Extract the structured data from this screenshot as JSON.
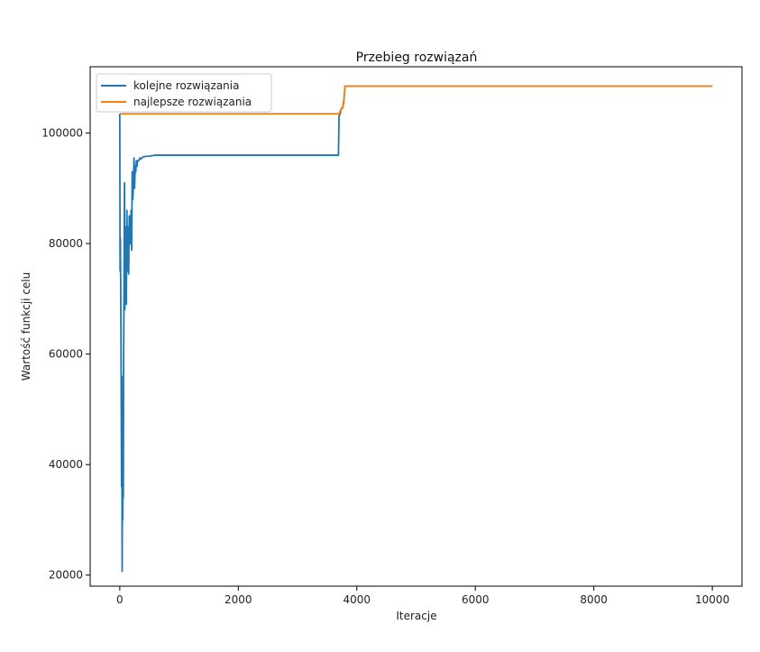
{
  "chart_data": {
    "type": "line",
    "title": "Przebieg rozwiązań",
    "xlabel": "Iteracje",
    "ylabel": "Wartość funkcji celu",
    "xlim": [
      -500,
      10500
    ],
    "ylim": [
      18000,
      112000
    ],
    "xticks": [
      0,
      2000,
      4000,
      6000,
      8000,
      10000
    ],
    "yticks": [
      20000,
      40000,
      60000,
      80000,
      100000
    ],
    "grid": false,
    "legend_position": "top-left",
    "colors": {
      "series_1": "#1f77b4",
      "series_2": "#ff7f0e"
    },
    "series": [
      {
        "name": "kolejne rozwiązania",
        "x": [
          0,
          5,
          10,
          15,
          20,
          25,
          30,
          35,
          40,
          45,
          50,
          55,
          60,
          65,
          70,
          75,
          80,
          85,
          90,
          95,
          100,
          110,
          120,
          130,
          140,
          150,
          160,
          170,
          180,
          190,
          200,
          210,
          220,
          230,
          240,
          250,
          260,
          270,
          280,
          290,
          300,
          320,
          340,
          360,
          380,
          400,
          450,
          500,
          550,
          600,
          700,
          1000,
          2000,
          3000,
          3690,
          3700,
          3720,
          3740,
          3760,
          3780,
          3800,
          3820,
          4000,
          6000,
          8000,
          10000
        ],
        "y": [
          103500,
          75000,
          81000,
          73000,
          63000,
          50000,
          36000,
          56000,
          20700,
          42000,
          30000,
          52000,
          34000,
          60000,
          67500,
          80000,
          91000,
          68000,
          77000,
          83000,
          79000,
          69000,
          86000,
          75000,
          83000,
          74500,
          85000,
          80000,
          80000,
          86000,
          78800,
          93000,
          88000,
          91000,
          95500,
          90000,
          94000,
          93000,
          95000,
          94000,
          95000,
          95000,
          95500,
          95300,
          95600,
          95700,
          95800,
          95800,
          95900,
          96000,
          96000,
          96000,
          96000,
          96000,
          96000,
          103000,
          103500,
          104500,
          104500,
          105500,
          108500,
          108500,
          108500,
          108500,
          108500,
          108500
        ]
      },
      {
        "name": "najlepsze rozwiązania",
        "x": [
          0,
          3690,
          3700,
          3740,
          3760,
          3780,
          3800,
          3820,
          10000
        ],
        "y": [
          103500,
          103500,
          103500,
          104500,
          104500,
          106000,
          108500,
          108500,
          108500
        ]
      }
    ]
  }
}
